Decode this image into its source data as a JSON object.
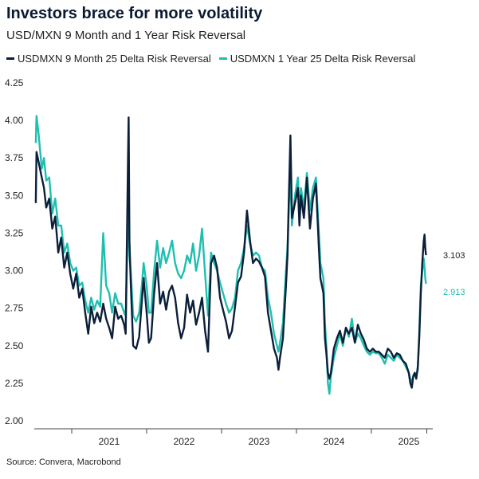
{
  "title": "Investors brace for more volatility",
  "subtitle": "USD/MXN 9 Month and 1 Year Risk Reversal",
  "source": "Source: Convera, Macrobond",
  "colors": {
    "navy": "#0b1f3a",
    "teal": "#1fbfb0"
  },
  "chart_data": {
    "type": "line",
    "ylim": [
      2.0,
      4.25
    ],
    "yticks": [
      4.25,
      4.0,
      3.75,
      3.5,
      3.25,
      3.0,
      2.75,
      2.5,
      2.25,
      2.0
    ],
    "ytick_labels": [
      "4.25",
      "4.00",
      "3.75",
      "3.50",
      "3.25",
      "3.00",
      "2.75",
      "2.50",
      "2.25",
      "2.00"
    ],
    "xlim": [
      2020.5,
      2025.82
    ],
    "xtick_years": [
      "2021",
      "2022",
      "2023",
      "2024",
      "2025"
    ],
    "series": [
      {
        "name": "USDMXN 9 Month 25 Delta Risk Reversal",
        "color": "#0b1f3a",
        "end_label": "3.103",
        "points": [
          [
            2020.52,
            3.45
          ],
          [
            2020.53,
            3.79
          ],
          [
            2020.56,
            3.72
          ],
          [
            2020.6,
            3.62
          ],
          [
            2020.63,
            3.55
          ],
          [
            2020.66,
            3.42
          ],
          [
            2020.7,
            3.48
          ],
          [
            2020.74,
            3.28
          ],
          [
            2020.78,
            3.36
          ],
          [
            2020.82,
            3.12
          ],
          [
            2020.86,
            3.22
          ],
          [
            2020.9,
            3.02
          ],
          [
            2020.94,
            3.12
          ],
          [
            2020.98,
            2.98
          ],
          [
            2021.02,
            2.88
          ],
          [
            2021.06,
            2.98
          ],
          [
            2021.1,
            2.82
          ],
          [
            2021.14,
            2.88
          ],
          [
            2021.18,
            2.72
          ],
          [
            2021.22,
            2.58
          ],
          [
            2021.26,
            2.76
          ],
          [
            2021.3,
            2.65
          ],
          [
            2021.34,
            2.72
          ],
          [
            2021.38,
            2.66
          ],
          [
            2021.42,
            2.78
          ],
          [
            2021.46,
            2.68
          ],
          [
            2021.5,
            2.62
          ],
          [
            2021.54,
            2.55
          ],
          [
            2021.58,
            2.76
          ],
          [
            2021.62,
            2.68
          ],
          [
            2021.66,
            2.7
          ],
          [
            2021.7,
            2.64
          ],
          [
            2021.72,
            2.58
          ],
          [
            2021.75,
            3.7
          ],
          [
            2021.76,
            4.02
          ],
          [
            2021.77,
            3.2
          ],
          [
            2021.79,
            2.9
          ],
          [
            2021.82,
            2.5
          ],
          [
            2021.86,
            2.48
          ],
          [
            2021.9,
            2.56
          ],
          [
            2021.94,
            2.82
          ],
          [
            2021.96,
            2.95
          ],
          [
            2022.0,
            2.72
          ],
          [
            2022.03,
            2.52
          ],
          [
            2022.06,
            2.55
          ],
          [
            2022.1,
            2.85
          ],
          [
            2022.14,
            3.05
          ],
          [
            2022.18,
            2.78
          ],
          [
            2022.22,
            2.86
          ],
          [
            2022.26,
            2.74
          ],
          [
            2022.3,
            2.86
          ],
          [
            2022.34,
            2.9
          ],
          [
            2022.38,
            2.82
          ],
          [
            2022.42,
            2.65
          ],
          [
            2022.46,
            2.55
          ],
          [
            2022.5,
            2.62
          ],
          [
            2022.54,
            2.84
          ],
          [
            2022.58,
            2.72
          ],
          [
            2022.62,
            2.8
          ],
          [
            2022.66,
            2.64
          ],
          [
            2022.7,
            2.72
          ],
          [
            2022.74,
            2.82
          ],
          [
            2022.78,
            2.6
          ],
          [
            2022.82,
            2.46
          ],
          [
            2022.86,
            3.05
          ],
          [
            2022.9,
            3.1
          ],
          [
            2022.94,
            3.02
          ],
          [
            2022.98,
            2.82
          ],
          [
            2023.02,
            2.74
          ],
          [
            2023.06,
            2.66
          ],
          [
            2023.1,
            2.55
          ],
          [
            2023.14,
            2.6
          ],
          [
            2023.18,
            2.76
          ],
          [
            2023.22,
            2.92
          ],
          [
            2023.26,
            2.96
          ],
          [
            2023.3,
            3.12
          ],
          [
            2023.34,
            3.4
          ],
          [
            2023.38,
            3.2
          ],
          [
            2023.42,
            3.05
          ],
          [
            2023.46,
            3.08
          ],
          [
            2023.5,
            3.06
          ],
          [
            2023.54,
            3.02
          ],
          [
            2023.58,
            2.96
          ],
          [
            2023.62,
            2.72
          ],
          [
            2023.66,
            2.6
          ],
          [
            2023.7,
            2.48
          ],
          [
            2023.74,
            2.42
          ],
          [
            2023.76,
            2.34
          ],
          [
            2023.78,
            2.42
          ],
          [
            2023.82,
            2.55
          ],
          [
            2023.86,
            2.9
          ],
          [
            2023.88,
            3.1
          ],
          [
            2023.9,
            3.5
          ],
          [
            2023.92,
            3.9
          ],
          [
            2023.94,
            3.35
          ],
          [
            2023.98,
            3.45
          ],
          [
            2024.02,
            3.55
          ],
          [
            2024.04,
            3.3
          ],
          [
            2024.06,
            3.5
          ],
          [
            2024.1,
            3.35
          ],
          [
            2024.14,
            3.62
          ],
          [
            2024.18,
            3.28
          ],
          [
            2024.22,
            3.48
          ],
          [
            2024.26,
            3.58
          ],
          [
            2024.3,
            3.15
          ],
          [
            2024.32,
            2.95
          ],
          [
            2024.36,
            2.85
          ],
          [
            2024.38,
            2.55
          ],
          [
            2024.4,
            2.45
          ],
          [
            2024.42,
            2.32
          ],
          [
            2024.44,
            2.28
          ],
          [
            2024.46,
            2.32
          ],
          [
            2024.5,
            2.48
          ],
          [
            2024.54,
            2.55
          ],
          [
            2024.58,
            2.6
          ],
          [
            2024.62,
            2.52
          ],
          [
            2024.66,
            2.62
          ],
          [
            2024.7,
            2.58
          ],
          [
            2024.74,
            2.62
          ],
          [
            2024.78,
            2.52
          ],
          [
            2024.82,
            2.64
          ],
          [
            2024.86,
            2.58
          ],
          [
            2024.9,
            2.54
          ],
          [
            2024.94,
            2.48
          ],
          [
            2024.98,
            2.46
          ],
          [
            2025.02,
            2.48
          ],
          [
            2025.06,
            2.46
          ],
          [
            2025.1,
            2.46
          ],
          [
            2025.14,
            2.44
          ],
          [
            2025.18,
            2.42
          ],
          [
            2025.22,
            2.48
          ],
          [
            2025.26,
            2.46
          ],
          [
            2025.3,
            2.42
          ],
          [
            2025.34,
            2.45
          ],
          [
            2025.38,
            2.44
          ],
          [
            2025.42,
            2.4
          ],
          [
            2025.46,
            2.38
          ],
          [
            2025.5,
            2.32
          ],
          [
            2025.52,
            2.25
          ],
          [
            2025.54,
            2.22
          ],
          [
            2025.56,
            2.3
          ],
          [
            2025.58,
            2.32
          ],
          [
            2025.6,
            2.28
          ],
          [
            2025.62,
            2.36
          ],
          [
            2025.64,
            2.56
          ],
          [
            2025.66,
            2.85
          ],
          [
            2025.68,
            3.05
          ],
          [
            2025.7,
            3.2
          ],
          [
            2025.71,
            3.24
          ],
          [
            2025.72,
            3.15
          ],
          [
            2025.73,
            3.103
          ]
        ]
      },
      {
        "name": "USDMXN 1 Year 25 Delta Risk Reversal",
        "color": "#1fbfb0",
        "end_label": "2.913",
        "points": [
          [
            2020.52,
            3.85
          ],
          [
            2020.53,
            4.03
          ],
          [
            2020.56,
            3.9
          ],
          [
            2020.6,
            3.68
          ],
          [
            2020.63,
            3.75
          ],
          [
            2020.66,
            3.6
          ],
          [
            2020.7,
            3.62
          ],
          [
            2020.74,
            3.38
          ],
          [
            2020.78,
            3.48
          ],
          [
            2020.82,
            3.3
          ],
          [
            2020.86,
            3.3
          ],
          [
            2020.9,
            3.12
          ],
          [
            2020.94,
            3.18
          ],
          [
            2020.98,
            3.05
          ],
          [
            2021.02,
            3.0
          ],
          [
            2021.06,
            3.02
          ],
          [
            2021.1,
            2.9
          ],
          [
            2021.14,
            2.92
          ],
          [
            2021.18,
            2.8
          ],
          [
            2021.22,
            2.72
          ],
          [
            2021.26,
            2.82
          ],
          [
            2021.3,
            2.74
          ],
          [
            2021.34,
            2.8
          ],
          [
            2021.38,
            2.76
          ],
          [
            2021.42,
            3.25
          ],
          [
            2021.46,
            2.9
          ],
          [
            2021.5,
            2.85
          ],
          [
            2021.54,
            2.72
          ],
          [
            2021.58,
            2.85
          ],
          [
            2021.62,
            2.78
          ],
          [
            2021.66,
            2.78
          ],
          [
            2021.7,
            2.72
          ],
          [
            2021.72,
            2.7
          ],
          [
            2021.75,
            3.3
          ],
          [
            2021.76,
            3.5
          ],
          [
            2021.77,
            3.1
          ],
          [
            2021.79,
            2.98
          ],
          [
            2021.82,
            2.7
          ],
          [
            2021.86,
            2.66
          ],
          [
            2021.9,
            2.72
          ],
          [
            2021.94,
            2.92
          ],
          [
            2021.96,
            3.05
          ],
          [
            2022.0,
            2.9
          ],
          [
            2022.03,
            2.72
          ],
          [
            2022.06,
            2.72
          ],
          [
            2022.1,
            3.0
          ],
          [
            2022.14,
            3.2
          ],
          [
            2022.18,
            3.02
          ],
          [
            2022.22,
            3.15
          ],
          [
            2022.26,
            3.05
          ],
          [
            2022.3,
            3.12
          ],
          [
            2022.34,
            3.2
          ],
          [
            2022.38,
            3.05
          ],
          [
            2022.42,
            2.98
          ],
          [
            2022.46,
            2.95
          ],
          [
            2022.5,
            3.0
          ],
          [
            2022.54,
            3.1
          ],
          [
            2022.58,
            3.05
          ],
          [
            2022.62,
            3.18
          ],
          [
            2022.66,
            3.0
          ],
          [
            2022.7,
            3.1
          ],
          [
            2022.74,
            3.28
          ],
          [
            2022.78,
            2.98
          ],
          [
            2022.82,
            2.7
          ],
          [
            2022.86,
            3.12
          ],
          [
            2022.9,
            3.05
          ],
          [
            2022.94,
            3.0
          ],
          [
            2022.98,
            2.92
          ],
          [
            2023.02,
            2.85
          ],
          [
            2023.06,
            2.78
          ],
          [
            2023.1,
            2.72
          ],
          [
            2023.14,
            2.75
          ],
          [
            2023.18,
            2.82
          ],
          [
            2023.22,
            3.0
          ],
          [
            2023.26,
            3.05
          ],
          [
            2023.3,
            3.15
          ],
          [
            2023.34,
            3.3
          ],
          [
            2023.38,
            3.18
          ],
          [
            2023.42,
            3.1
          ],
          [
            2023.46,
            3.12
          ],
          [
            2023.5,
            3.1
          ],
          [
            2023.54,
            3.02
          ],
          [
            2023.58,
            3.0
          ],
          [
            2023.62,
            2.82
          ],
          [
            2023.66,
            2.72
          ],
          [
            2023.7,
            2.58
          ],
          [
            2023.74,
            2.5
          ],
          [
            2023.76,
            2.46
          ],
          [
            2023.78,
            2.52
          ],
          [
            2023.82,
            2.65
          ],
          [
            2023.86,
            3.0
          ],
          [
            2023.88,
            3.15
          ],
          [
            2023.9,
            3.45
          ],
          [
            2023.92,
            3.6
          ],
          [
            2023.94,
            3.3
          ],
          [
            2023.98,
            3.5
          ],
          [
            2024.02,
            3.62
          ],
          [
            2024.04,
            3.4
          ],
          [
            2024.06,
            3.55
          ],
          [
            2024.1,
            3.42
          ],
          [
            2024.14,
            3.65
          ],
          [
            2024.18,
            3.4
          ],
          [
            2024.22,
            3.55
          ],
          [
            2024.26,
            3.62
          ],
          [
            2024.3,
            3.25
          ],
          [
            2024.32,
            3.05
          ],
          [
            2024.36,
            2.95
          ],
          [
            2024.38,
            2.65
          ],
          [
            2024.4,
            2.5
          ],
          [
            2024.42,
            2.25
          ],
          [
            2024.44,
            2.18
          ],
          [
            2024.46,
            2.3
          ],
          [
            2024.5,
            2.42
          ],
          [
            2024.54,
            2.5
          ],
          [
            2024.58,
            2.58
          ],
          [
            2024.62,
            2.5
          ],
          [
            2024.66,
            2.62
          ],
          [
            2024.7,
            2.56
          ],
          [
            2024.74,
            2.68
          ],
          [
            2024.78,
            2.52
          ],
          [
            2024.82,
            2.58
          ],
          [
            2024.86,
            2.55
          ],
          [
            2024.9,
            2.5
          ],
          [
            2024.94,
            2.46
          ],
          [
            2024.98,
            2.44
          ],
          [
            2025.02,
            2.46
          ],
          [
            2025.06,
            2.45
          ],
          [
            2025.1,
            2.45
          ],
          [
            2025.14,
            2.42
          ],
          [
            2025.18,
            2.38
          ],
          [
            2025.22,
            2.44
          ],
          [
            2025.26,
            2.42
          ],
          [
            2025.3,
            2.4
          ],
          [
            2025.34,
            2.44
          ],
          [
            2025.38,
            2.42
          ],
          [
            2025.42,
            2.4
          ],
          [
            2025.46,
            2.36
          ],
          [
            2025.5,
            2.32
          ],
          [
            2025.52,
            2.28
          ],
          [
            2025.54,
            2.26
          ],
          [
            2025.56,
            2.3
          ],
          [
            2025.58,
            2.3
          ],
          [
            2025.6,
            2.3
          ],
          [
            2025.62,
            2.34
          ],
          [
            2025.64,
            2.6
          ],
          [
            2025.66,
            2.9
          ],
          [
            2025.68,
            3.0
          ],
          [
            2025.7,
            3.08
          ],
          [
            2025.71,
            3.02
          ],
          [
            2025.72,
            2.95
          ],
          [
            2025.73,
            2.913
          ]
        ]
      }
    ]
  }
}
